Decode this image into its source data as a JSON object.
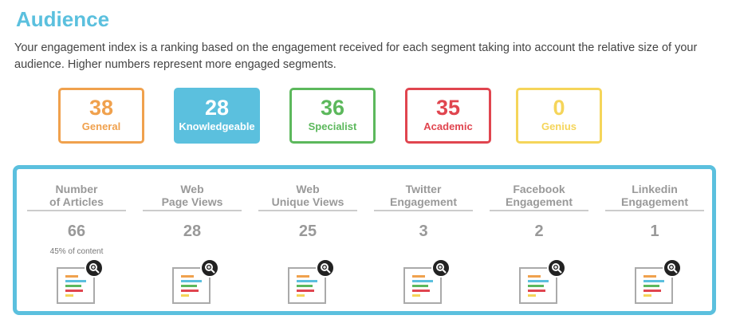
{
  "header": {
    "title": "Audience",
    "description": "Your engagement index is a ranking based on the engagement received for each segment taking into account the relative size of your audience. Higher numbers represent more engaged segments."
  },
  "segments": [
    {
      "value": "38",
      "label": "General",
      "color": "#f0a14d",
      "filled": false
    },
    {
      "value": "28",
      "label": "Knowledgeable",
      "color": "#5bc0de",
      "filled": true
    },
    {
      "value": "36",
      "label": "Specialist",
      "color": "#5cb85c",
      "filled": false
    },
    {
      "value": "35",
      "label": "Academic",
      "color": "#e0454f",
      "filled": false
    },
    {
      "value": "0",
      "label": "Genius",
      "color": "#f5d55a",
      "filled": false
    }
  ],
  "metrics": [
    {
      "line1": "Number",
      "line2": "of Articles",
      "value": "66",
      "note": "45% of content"
    },
    {
      "line1": "Web",
      "line2": "Page Views",
      "value": "28",
      "note": ""
    },
    {
      "line1": "Web",
      "line2": "Unique Views",
      "value": "25",
      "note": ""
    },
    {
      "line1": "Twitter",
      "line2": "Engagement",
      "value": "3",
      "note": ""
    },
    {
      "line1": "Facebook",
      "line2": "Engagement",
      "value": "2",
      "note": ""
    },
    {
      "line1": "Linkedin",
      "line2": "Engagement",
      "value": "1",
      "note": ""
    }
  ],
  "icons": {
    "report": "report-thumbnail-icon",
    "zoom": "magnifier-icon"
  },
  "colors": {
    "accent": "#5bc0de",
    "report_bars": [
      "#f0a14d",
      "#5bc0de",
      "#5cb85c",
      "#e0454f",
      "#f5d55a"
    ]
  }
}
